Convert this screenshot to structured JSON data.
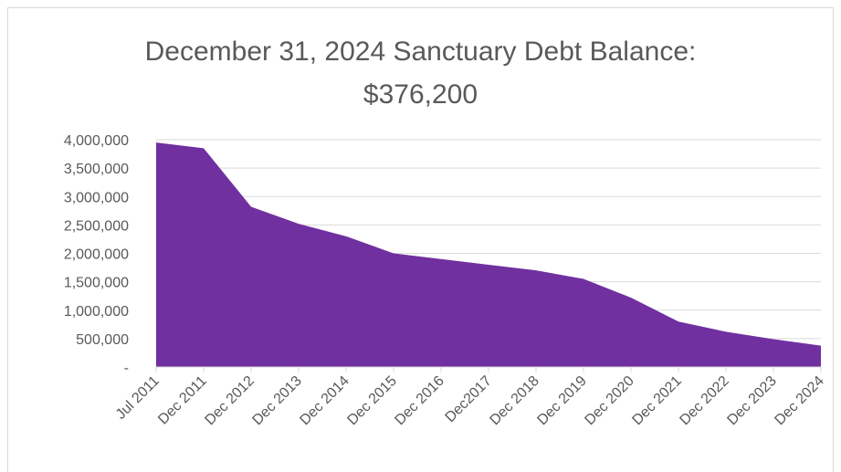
{
  "chart_data": {
    "type": "area",
    "title_line1": "December 31, 2024 Sanctuary Debt Balance:",
    "title_line2": "$376,200",
    "xlabel": "",
    "ylabel": "",
    "categories": [
      "Jul 2011",
      "Dec 2011",
      "Dec 2012",
      "Dec 2013",
      "Dec 2014",
      "Dec 2015",
      "Dec 2016",
      "Dec2017",
      "Dec 2018",
      "Dec 2019",
      "Dec 2020",
      "Dec 2021",
      "Dec 2022",
      "Dec 2023",
      "Dec 2024"
    ],
    "values": [
      3950000,
      3850000,
      2820000,
      2520000,
      2300000,
      2000000,
      1900000,
      1800000,
      1700000,
      1550000,
      1220000,
      800000,
      620000,
      490000,
      376200
    ],
    "ylim": [
      0,
      4000000
    ],
    "yticks": [
      0,
      500000,
      1000000,
      1500000,
      2000000,
      2500000,
      3000000,
      3500000,
      4000000
    ],
    "ytick_labels": [
      "-",
      "500,000",
      "1,000,000",
      "1,500,000",
      "2,000,000",
      "2,500,000",
      "3,000,000",
      "3,500,000",
      "4,000,000"
    ],
    "grid": true,
    "legend": "none",
    "colors": {
      "fill": "#7030a0",
      "grid": "#d9d9d9",
      "text": "#595959"
    }
  }
}
